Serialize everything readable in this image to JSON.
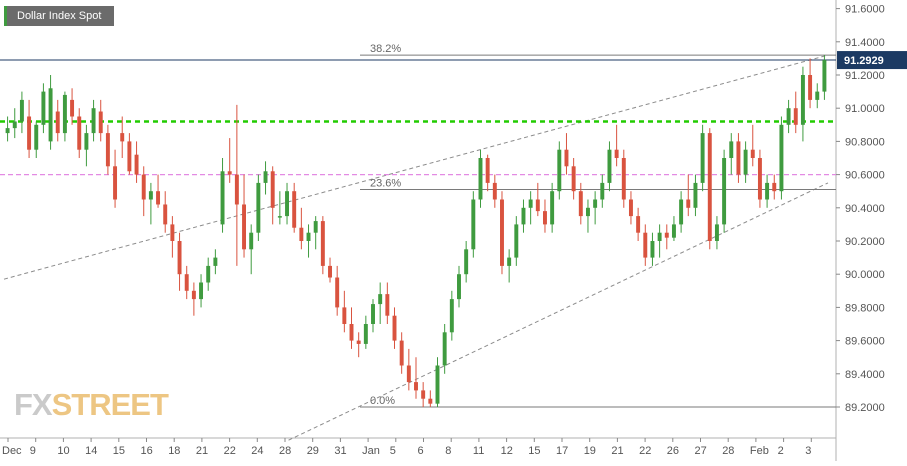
{
  "header": {
    "symbol_label": "Dollar Index Spot"
  },
  "watermark": {
    "fx": "FX",
    "street": "STREET"
  },
  "chart_data": {
    "type": "candlestick",
    "title": "Dollar Index Spot",
    "y_range": [
      89.0,
      91.7
    ],
    "y_ticks": [
      "91.6000",
      "91.4000",
      "91.2000",
      "91.0000",
      "90.8000",
      "90.6000",
      "90.4000",
      "90.2000",
      "90.0000",
      "89.8000",
      "89.6000",
      "89.4000",
      "89.2000"
    ],
    "x_labels": [
      "Dec",
      "9",
      "10",
      "14",
      "15",
      "16",
      "18",
      "21",
      "22",
      "24",
      "28",
      "29",
      "31",
      "Jan",
      "5",
      "6",
      "8",
      "11",
      "12",
      "15",
      "17",
      "19",
      "21",
      "22",
      "26",
      "27",
      "28",
      "Feb",
      "2",
      "3"
    ],
    "last_price": "91.2929",
    "fib_levels": [
      {
        "label": "38.2%",
        "value": 91.32
      },
      {
        "label": "23.6%",
        "value": 90.51
      },
      {
        "label": "0.0%",
        "value": 89.2
      }
    ],
    "horizontal_lines": [
      {
        "name": "resistance-green",
        "value": 90.92,
        "color": "#22cc00"
      },
      {
        "name": "support-magenta",
        "value": 90.6,
        "color": "#e38ae3"
      },
      {
        "name": "last-price",
        "value": 91.29,
        "color": "#1c3a63"
      }
    ],
    "trendlines": [
      {
        "name": "upper-channel",
        "x0": 0,
        "y0": 89.97,
        "x1": 139,
        "y1": 91.32
      },
      {
        "name": "lower-channel",
        "x0": 48,
        "y0": 89.0,
        "x1": 139,
        "y1": 90.55
      }
    ],
    "colors": {
      "up": "#3f9b3f",
      "down": "#d9533f"
    },
    "candles": [
      [
        90.85,
        90.95,
        90.8,
        90.88
      ],
      [
        90.88,
        91.0,
        90.82,
        90.92
      ],
      [
        90.92,
        91.1,
        90.85,
        91.05
      ],
      [
        90.95,
        91.05,
        90.7,
        90.75
      ],
      [
        90.75,
        90.92,
        90.7,
        90.9
      ],
      [
        90.9,
        91.15,
        90.85,
        91.1
      ],
      [
        90.8,
        91.2,
        90.75,
        91.12
      ],
      [
        90.98,
        91.05,
        90.8,
        90.85
      ],
      [
        90.85,
        91.1,
        90.8,
        91.08
      ],
      [
        91.05,
        91.12,
        90.9,
        90.95
      ],
      [
        90.95,
        91.0,
        90.7,
        90.75
      ],
      [
        90.75,
        90.9,
        90.65,
        90.85
      ],
      [
        90.85,
        91.05,
        90.8,
        91.0
      ],
      [
        90.98,
        91.05,
        90.8,
        90.85
      ],
      [
        90.85,
        90.9,
        90.6,
        90.65
      ],
      [
        90.65,
        90.75,
        90.4,
        90.45
      ],
      [
        90.85,
        90.95,
        90.7,
        90.8
      ],
      [
        90.8,
        90.85,
        90.6,
        90.62
      ],
      [
        90.72,
        90.8,
        90.55,
        90.6
      ],
      [
        90.6,
        90.65,
        90.35,
        90.45
      ],
      [
        90.45,
        90.55,
        90.3,
        90.5
      ],
      [
        90.5,
        90.6,
        90.4,
        90.42
      ],
      [
        90.42,
        90.5,
        90.25,
        90.3
      ],
      [
        90.3,
        90.35,
        90.1,
        90.2
      ],
      [
        90.2,
        90.25,
        89.9,
        90.0
      ],
      [
        90.0,
        90.05,
        89.85,
        89.9
      ],
      [
        89.9,
        89.95,
        89.75,
        89.85
      ],
      [
        89.85,
        90.0,
        89.8,
        89.95
      ],
      [
        89.95,
        90.1,
        89.9,
        90.05
      ],
      [
        90.05,
        90.15,
        90.0,
        90.1
      ],
      [
        90.3,
        90.7,
        90.25,
        90.62
      ],
      [
        90.62,
        90.82,
        90.55,
        90.6
      ],
      [
        90.6,
        91.02,
        90.05,
        90.42
      ],
      [
        90.42,
        90.6,
        90.1,
        90.15
      ],
      [
        90.15,
        90.3,
        90.0,
        90.25
      ],
      [
        90.25,
        90.6,
        90.2,
        90.55
      ],
      [
        90.55,
        90.68,
        90.48,
        90.62
      ],
      [
        90.62,
        90.65,
        90.3,
        90.4
      ],
      [
        90.35,
        90.5,
        90.3,
        90.35
      ],
      [
        90.35,
        90.55,
        90.3,
        90.5
      ],
      [
        90.5,
        90.55,
        90.25,
        90.28
      ],
      [
        90.28,
        90.4,
        90.15,
        90.2
      ],
      [
        90.2,
        90.3,
        90.1,
        90.25
      ],
      [
        90.25,
        90.35,
        90.15,
        90.32
      ],
      [
        90.32,
        90.35,
        90.0,
        90.05
      ],
      [
        90.05,
        90.1,
        89.95,
        89.98
      ],
      [
        89.98,
        90.05,
        89.75,
        89.8
      ],
      [
        89.8,
        89.9,
        89.65,
        89.7
      ],
      [
        89.7,
        89.8,
        89.55,
        89.6
      ],
      [
        89.6,
        89.65,
        89.5,
        89.58
      ],
      [
        89.58,
        89.75,
        89.55,
        89.7
      ],
      [
        89.7,
        89.85,
        89.65,
        89.82
      ],
      [
        89.82,
        89.95,
        89.7,
        89.88
      ],
      [
        89.88,
        89.95,
        89.7,
        89.75
      ],
      [
        89.75,
        89.8,
        89.55,
        89.6
      ],
      [
        89.6,
        89.65,
        89.4,
        89.45
      ],
      [
        89.45,
        89.55,
        89.3,
        89.35
      ],
      [
        89.35,
        89.5,
        89.25,
        89.3
      ],
      [
        89.3,
        89.35,
        89.2,
        89.25
      ],
      [
        89.25,
        89.3,
        89.2,
        89.22
      ],
      [
        89.22,
        89.5,
        89.2,
        89.45
      ],
      [
        89.45,
        89.7,
        89.4,
        89.65
      ],
      [
        89.65,
        89.9,
        89.6,
        89.85
      ],
      [
        89.85,
        90.05,
        89.8,
        90.0
      ],
      [
        90.0,
        90.2,
        89.95,
        90.15
      ],
      [
        90.15,
        90.5,
        90.1,
        90.45
      ],
      [
        90.45,
        90.75,
        90.4,
        90.7
      ],
      [
        90.7,
        90.72,
        90.5,
        90.55
      ],
      [
        90.55,
        90.6,
        90.4,
        90.45
      ],
      [
        90.45,
        90.5,
        90.0,
        90.05
      ],
      [
        90.05,
        90.15,
        89.95,
        90.1
      ],
      [
        90.1,
        90.35,
        90.05,
        90.3
      ],
      [
        90.3,
        90.45,
        90.25,
        90.4
      ],
      [
        90.4,
        90.5,
        90.3,
        90.45
      ],
      [
        90.45,
        90.55,
        90.35,
        90.38
      ],
      [
        90.38,
        90.45,
        90.25,
        90.3
      ],
      [
        90.3,
        90.55,
        90.25,
        90.5
      ],
      [
        90.5,
        90.8,
        90.45,
        90.75
      ],
      [
        90.75,
        90.85,
        90.6,
        90.65
      ],
      [
        90.65,
        90.7,
        90.45,
        90.5
      ],
      [
        90.5,
        90.55,
        90.3,
        90.35
      ],
      [
        90.35,
        90.45,
        90.25,
        90.4
      ],
      [
        90.4,
        90.5,
        90.3,
        90.45
      ],
      [
        90.45,
        90.6,
        90.4,
        90.55
      ],
      [
        90.55,
        90.8,
        90.5,
        90.75
      ],
      [
        90.75,
        90.9,
        90.65,
        90.7
      ],
      [
        90.7,
        90.75,
        90.4,
        90.45
      ],
      [
        90.45,
        90.5,
        90.3,
        90.35
      ],
      [
        90.35,
        90.4,
        90.2,
        90.25
      ],
      [
        90.25,
        90.3,
        90.05,
        90.1
      ],
      [
        90.1,
        90.25,
        90.05,
        90.2
      ],
      [
        90.2,
        90.3,
        90.1,
        90.25
      ],
      [
        90.25,
        90.3,
        90.15,
        90.22
      ],
      [
        90.22,
        90.35,
        90.2,
        90.3
      ],
      [
        90.3,
        90.5,
        90.25,
        90.45
      ],
      [
        90.45,
        90.6,
        90.35,
        90.4
      ],
      [
        90.4,
        90.6,
        90.35,
        90.55
      ],
      [
        90.55,
        90.9,
        90.5,
        90.85
      ],
      [
        90.85,
        90.88,
        90.15,
        90.2
      ],
      [
        90.2,
        90.35,
        90.15,
        90.3
      ],
      [
        90.3,
        90.75,
        90.25,
        90.7
      ],
      [
        90.7,
        90.85,
        90.6,
        90.8
      ],
      [
        90.8,
        90.85,
        90.55,
        90.6
      ],
      [
        90.6,
        90.8,
        90.55,
        90.75
      ],
      [
        90.75,
        90.9,
        90.65,
        90.7
      ],
      [
        90.7,
        90.75,
        90.4,
        90.45
      ],
      [
        90.45,
        90.6,
        90.4,
        90.55
      ],
      [
        90.55,
        90.6,
        90.45,
        90.5
      ],
      [
        90.5,
        90.95,
        90.45,
        90.9
      ],
      [
        90.9,
        91.05,
        90.85,
        91.0
      ],
      [
        91.0,
        91.1,
        90.85,
        90.9
      ],
      [
        90.9,
        91.25,
        90.8,
        91.2
      ],
      [
        91.2,
        91.3,
        91.0,
        91.05
      ],
      [
        91.05,
        91.15,
        91.0,
        91.1
      ],
      [
        91.1,
        91.32,
        91.05,
        91.29
      ]
    ]
  }
}
